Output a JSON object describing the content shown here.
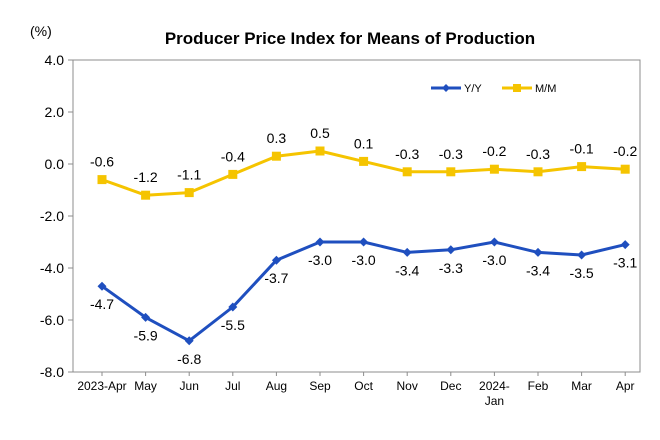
{
  "chart_data": {
    "type": "line",
    "title": "Producer Price Index for Means of Production",
    "ylabel": "(%)",
    "xlabel": "",
    "ylim": [
      -8.0,
      4.0
    ],
    "yticks": [
      "4.0",
      "2.0",
      "0.0",
      "-2.0",
      "-4.0",
      "-6.0",
      "-8.0"
    ],
    "ytick_values": [
      4,
      2,
      0,
      -2,
      -4,
      -6,
      -8
    ],
    "categories": [
      [
        "2023-Apr"
      ],
      [
        "May"
      ],
      [
        "Jun"
      ],
      [
        "Jul"
      ],
      [
        "Aug"
      ],
      [
        "Sep"
      ],
      [
        "Oct"
      ],
      [
        "Nov"
      ],
      [
        "Dec"
      ],
      [
        "2024-",
        "Jan"
      ],
      [
        "Feb"
      ],
      [
        "Mar"
      ],
      [
        "Apr"
      ]
    ],
    "legend_position": "top-right",
    "grid": false,
    "series": [
      {
        "name": "Y/Y",
        "color": "#1f4fbf",
        "marker": "diamond",
        "label_position": "below",
        "values": [
          -4.7,
          -5.9,
          -6.8,
          -5.5,
          -3.7,
          -3.0,
          -3.0,
          -3.4,
          -3.3,
          -3.0,
          -3.4,
          -3.5,
          -3.1
        ],
        "labels": [
          "-4.7",
          "-5.9",
          "-6.8",
          "-5.5",
          "-3.7",
          "-3.0",
          "-3.0",
          "-3.4",
          "-3.3",
          "-3.0",
          "-3.4",
          "-3.5",
          "-3.1"
        ]
      },
      {
        "name": "M/M",
        "color": "#f5c400",
        "marker": "square",
        "label_position": "above",
        "values": [
          -0.6,
          -1.2,
          -1.1,
          -0.4,
          0.3,
          0.5,
          0.1,
          -0.3,
          -0.3,
          -0.2,
          -0.3,
          -0.1,
          -0.2
        ],
        "labels": [
          "-0.6",
          "-1.2",
          "-1.1",
          "-0.4",
          "0.3",
          "0.5",
          "0.1",
          "-0.3",
          "-0.3",
          "-0.2",
          "-0.3",
          "-0.1",
          "-0.2"
        ]
      }
    ]
  }
}
